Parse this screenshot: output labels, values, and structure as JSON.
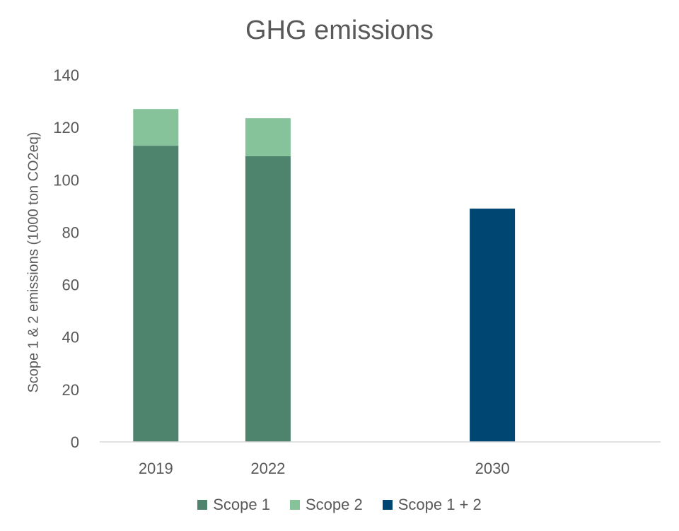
{
  "chart_data": {
    "type": "bar",
    "stacked": true,
    "title": "GHG emissions",
    "xlabel": "",
    "ylabel": "Scope 1 & 2 emissions (1000 ton CO2eq)",
    "categories": [
      "2019",
      "2022",
      "",
      "2030",
      ""
    ],
    "ylim": [
      0,
      140
    ],
    "yticks": [
      0,
      20,
      40,
      60,
      80,
      100,
      120,
      140
    ],
    "grid": false,
    "legend_position": "bottom",
    "series": [
      {
        "name": "Scope 1",
        "color": "#4e836e",
        "values": [
          113,
          109,
          0,
          0,
          0
        ]
      },
      {
        "name": "Scope 2",
        "color": "#87c39a",
        "values": [
          14,
          14.5,
          0,
          0,
          0
        ]
      },
      {
        "name": "Scope 1 + 2",
        "color": "#004673",
        "values": [
          0,
          0,
          0,
          89,
          0
        ]
      }
    ]
  }
}
